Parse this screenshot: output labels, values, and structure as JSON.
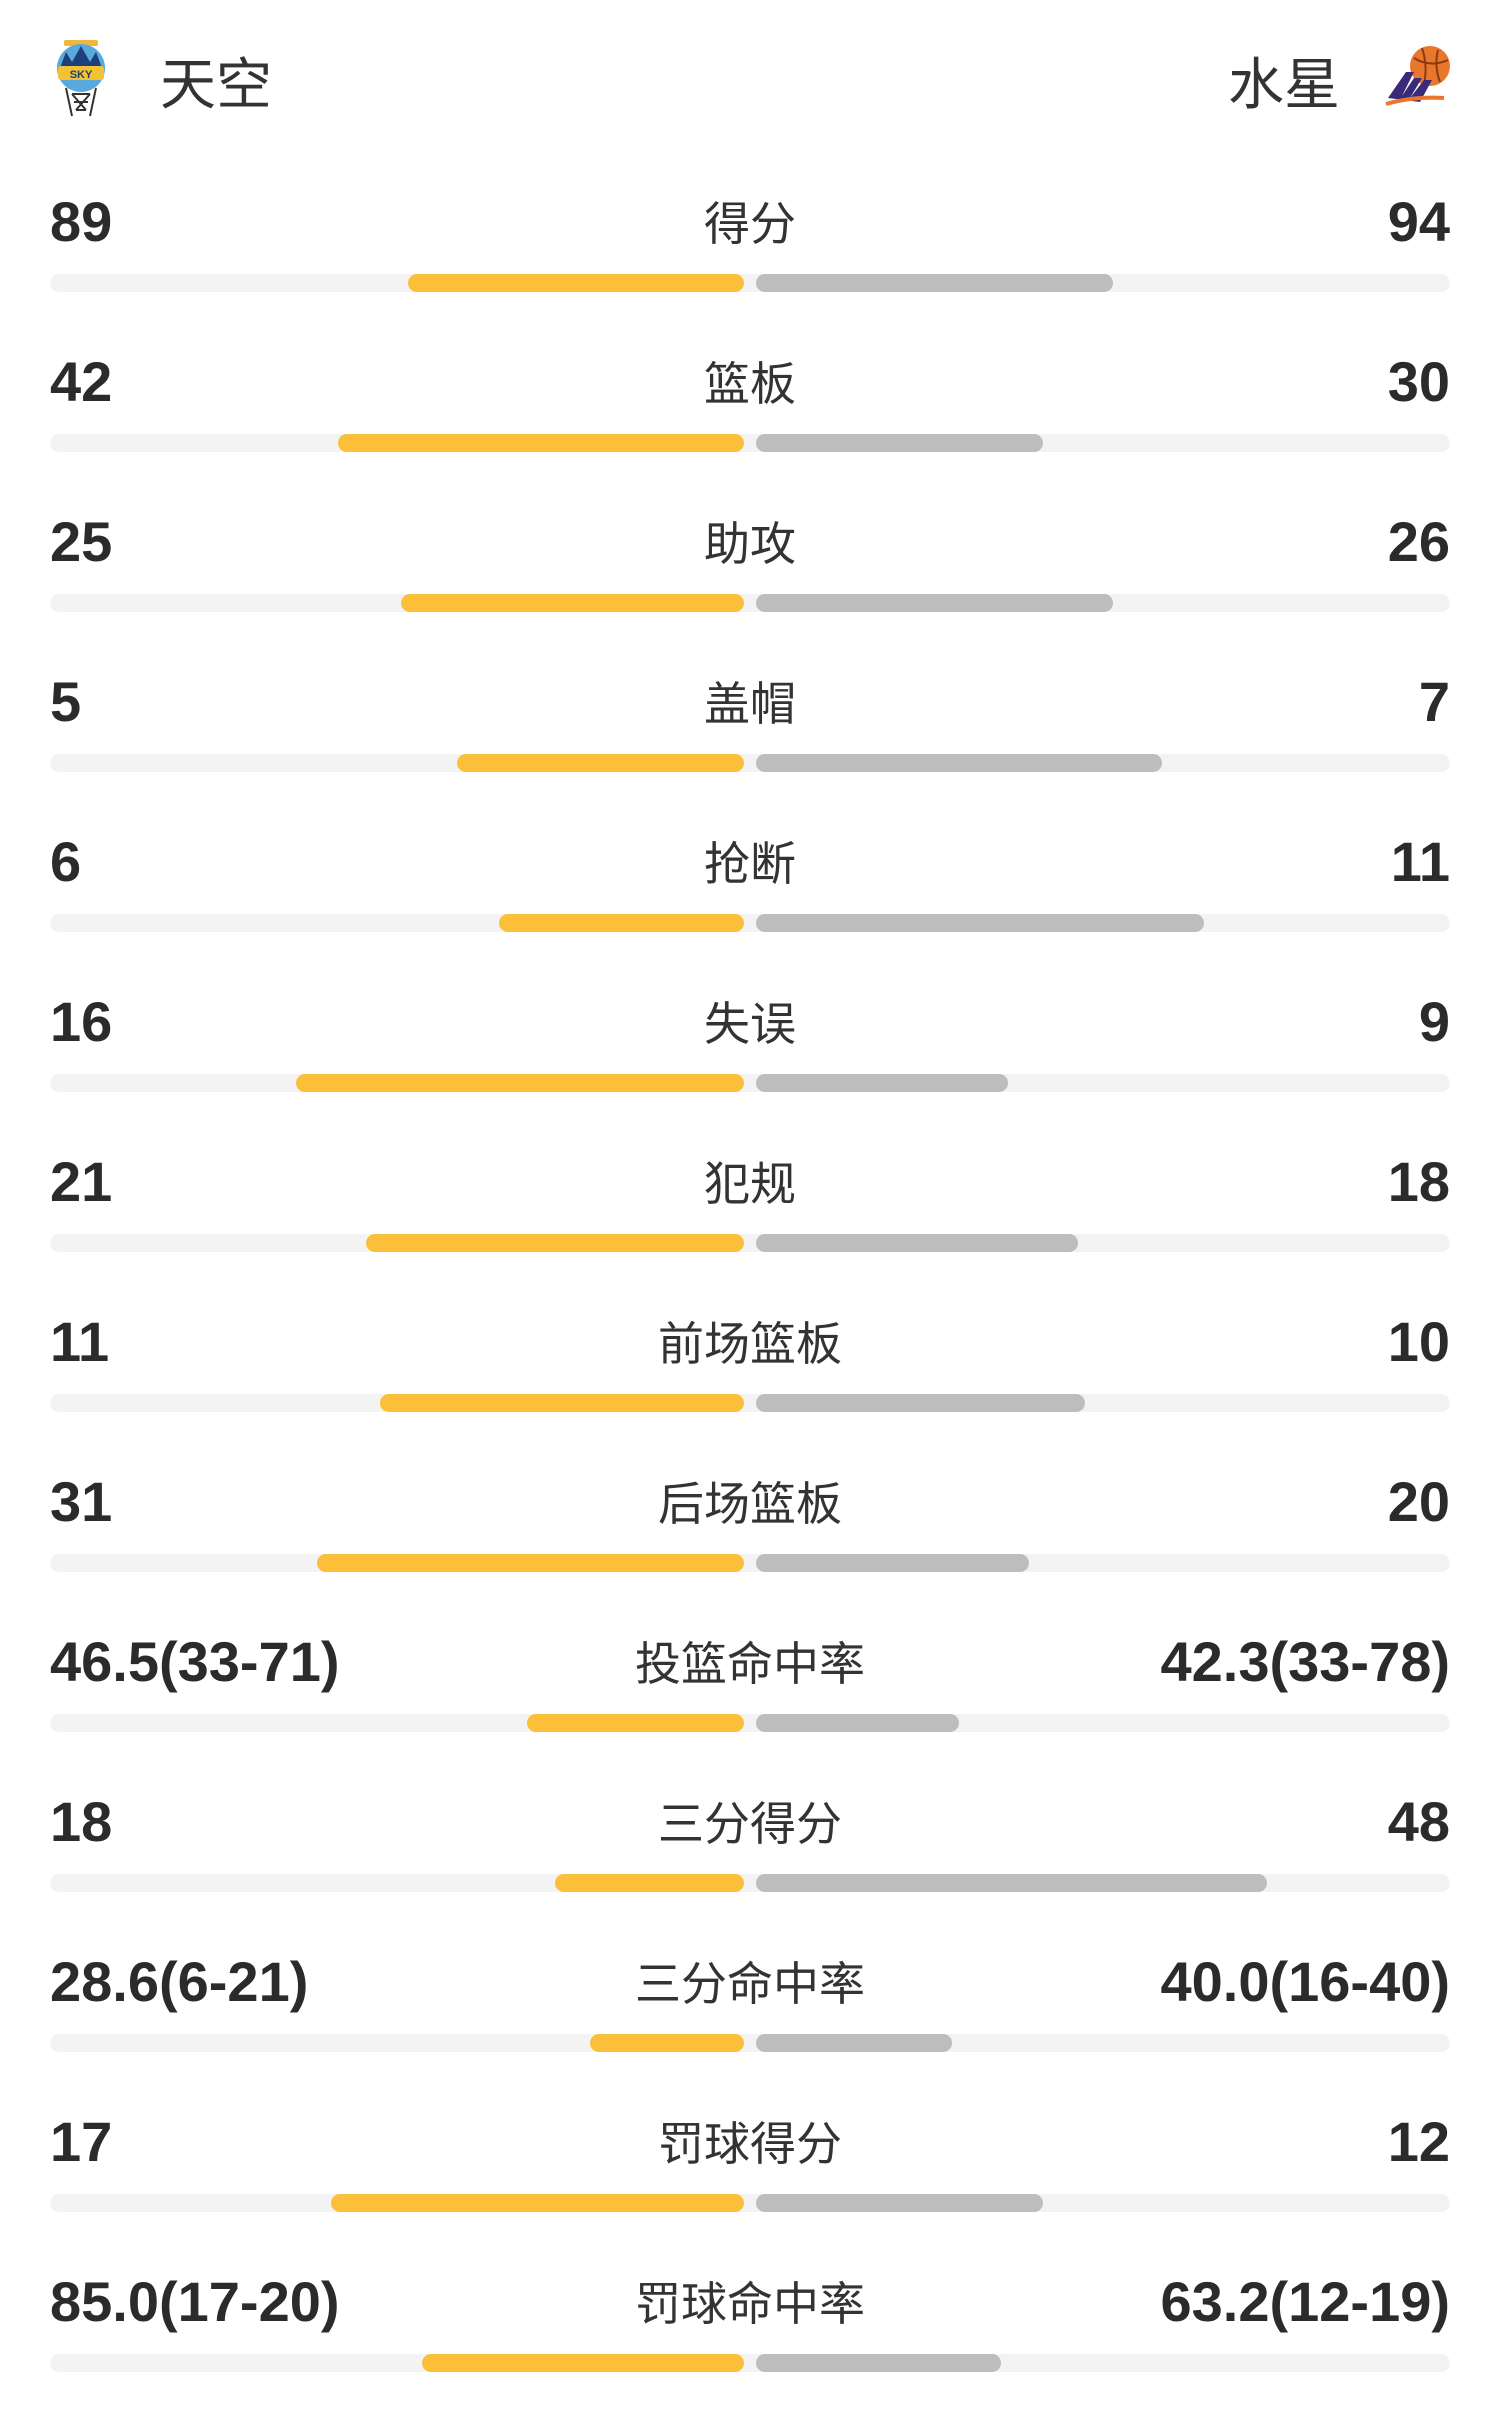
{
  "header": {
    "home_team": "天空",
    "away_team": "水星",
    "home_logo_icon": "chicago-sky-logo-icon",
    "away_logo_icon": "phoenix-mercury-logo-icon"
  },
  "colors": {
    "home_bar": "#fbbf3a",
    "away_bar": "#bdbdbd",
    "track": "#f3f3f3"
  },
  "stats": [
    {
      "label": "得分",
      "home": "89",
      "away": "94",
      "home_fill": 0.48,
      "away_fill": 0.51
    },
    {
      "label": "篮板",
      "home": "42",
      "away": "30",
      "home_fill": 0.58,
      "away_fill": 0.41
    },
    {
      "label": "助攻",
      "home": "25",
      "away": "26",
      "home_fill": 0.49,
      "away_fill": 0.51
    },
    {
      "label": "盖帽",
      "home": "5",
      "away": "7",
      "home_fill": 0.41,
      "away_fill": 0.58
    },
    {
      "label": "抢断",
      "home": "6",
      "away": "11",
      "home_fill": 0.35,
      "away_fill": 0.64
    },
    {
      "label": "失误",
      "home": "16",
      "away": "9",
      "home_fill": 0.64,
      "away_fill": 0.36
    },
    {
      "label": "犯规",
      "home": "21",
      "away": "18",
      "home_fill": 0.54,
      "away_fill": 0.46
    },
    {
      "label": "前场篮板",
      "home": "11",
      "away": "10",
      "home_fill": 0.52,
      "away_fill": 0.47
    },
    {
      "label": "后场篮板",
      "home": "31",
      "away": "20",
      "home_fill": 0.61,
      "away_fill": 0.39
    },
    {
      "label": "投篮命中率",
      "home": "46.5(33-71)",
      "away": "42.3(33-78)",
      "home_fill": 0.31,
      "away_fill": 0.29
    },
    {
      "label": "三分得分",
      "home": "18",
      "away": "48",
      "home_fill": 0.27,
      "away_fill": 0.73
    },
    {
      "label": "三分命中率",
      "home": "28.6(6-21)",
      "away": "40.0(16-40)",
      "home_fill": 0.22,
      "away_fill": 0.28
    },
    {
      "label": "罚球得分",
      "home": "17",
      "away": "12",
      "home_fill": 0.59,
      "away_fill": 0.41
    },
    {
      "label": "罚球命中率",
      "home": "85.0(17-20)",
      "away": "63.2(12-19)",
      "home_fill": 0.46,
      "away_fill": 0.35
    }
  ]
}
